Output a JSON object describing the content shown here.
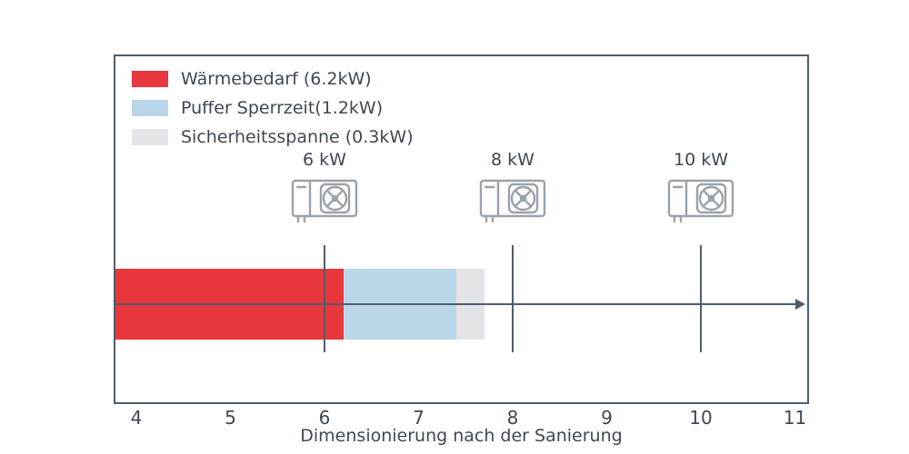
{
  "chart_data": {
    "type": "bar",
    "orientation": "horizontal",
    "stacked": true,
    "title": "",
    "xlabel": "Dimensionierung nach der Sanierung",
    "ylabel": "",
    "x_ticks": [
      4,
      5,
      6,
      7,
      8,
      9,
      10,
      11
    ],
    "xlim": [
      3.78,
      11.2
    ],
    "grid": false,
    "legend_position": "upper-left",
    "segments": [
      {
        "label": "Wärmebedarf (6.2kW)",
        "value": 6.2,
        "end": 6.2,
        "color": "#e8373d"
      },
      {
        "label": "Puffer Sperrzeit(1.2kW)",
        "value": 1.2,
        "end": 7.4,
        "color": "#b9d7e8"
      },
      {
        "label": "Sicherheitsspanne (0.3kW)",
        "value": 0.3,
        "end": 7.7,
        "color": "#e2e4e7"
      }
    ],
    "markers": [
      {
        "label": "6 kW",
        "value": 6
      },
      {
        "label": "8 kW",
        "value": 8
      },
      {
        "label": "10 kW",
        "value": 10
      }
    ],
    "frame_color": "#4e5d6c",
    "text_color": "#3d4854",
    "icon_color": "#9aa2aa"
  }
}
